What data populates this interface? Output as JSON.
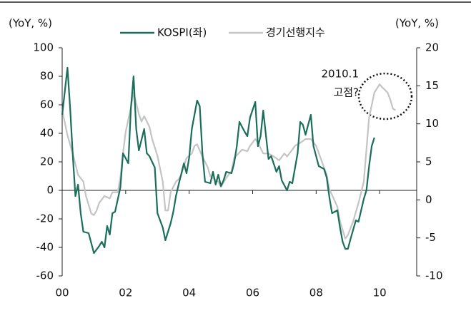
{
  "chart_data": {
    "type": "line",
    "ylabel": "(YoY, %)",
    "y2label": "(YoY, %)",
    "xlim": [
      0,
      134
    ],
    "xticks": [
      {
        "value": 0,
        "label": "00"
      },
      {
        "value": 24,
        "label": "02"
      },
      {
        "value": 48,
        "label": "04"
      },
      {
        "value": 72,
        "label": "06"
      },
      {
        "value": 96,
        "label": "08"
      },
      {
        "value": 120,
        "label": "10"
      }
    ],
    "ylim": [
      -60,
      100
    ],
    "yticks": [
      -60,
      -40,
      -20,
      0,
      20,
      40,
      60,
      80,
      100
    ],
    "y2lim": [
      -10,
      20
    ],
    "y2ticks": [
      -10,
      -5,
      0,
      5,
      10,
      15,
      20
    ],
    "annotation": [
      "2010.1",
      "고점?"
    ],
    "series": [
      {
        "name": "KOSPI(좌)",
        "color": "#1a6e5a",
        "x": [
          0,
          2,
          3,
          4,
          5,
          6,
          7,
          8,
          10,
          11,
          12,
          14,
          15,
          16,
          17,
          18,
          19,
          20,
          22,
          23,
          25,
          26,
          27,
          28,
          29,
          31,
          32,
          33,
          35,
          36,
          38,
          39,
          41,
          42,
          43,
          44,
          46,
          47,
          48,
          49,
          51,
          52,
          53,
          54,
          56,
          57,
          58,
          59,
          60,
          61,
          62,
          64,
          65,
          66,
          67,
          69,
          70,
          71,
          73,
          74,
          75,
          76,
          78,
          79,
          81,
          82,
          83,
          85,
          86,
          87,
          89,
          90,
          91,
          92,
          94,
          95,
          96,
          97,
          99,
          100,
          101,
          102,
          104,
          105,
          106,
          107,
          108,
          109,
          111,
          112,
          114,
          115,
          116,
          117,
          118
        ],
        "values": [
          53,
          86,
          58,
          25,
          -4,
          4,
          -16,
          -29,
          -30,
          -37,
          -44,
          -39,
          -36,
          -40,
          -25,
          -31,
          -16,
          -15,
          2,
          26,
          19,
          58,
          80,
          43,
          28,
          43,
          26,
          24,
          16,
          -16,
          -26,
          -35,
          -23,
          -15,
          -4,
          4,
          19,
          12,
          23,
          43,
          63,
          59,
          26,
          6,
          5,
          13,
          4,
          11,
          3,
          7,
          13,
          12,
          19,
          31,
          48,
          41,
          38,
          51,
          62,
          31,
          38,
          56,
          22,
          24,
          13,
          17,
          7,
          0,
          6,
          5,
          26,
          48,
          46,
          39,
          53,
          31,
          24,
          17,
          15,
          9,
          -5,
          -16,
          -14,
          -26,
          -36,
          -41,
          -41,
          -34,
          -21,
          -22,
          -6,
          0,
          17,
          31,
          37
        ]
      },
      {
        "name": "경기선행지수",
        "color": "#c4c4c4",
        "axis": "y2",
        "x": [
          0,
          2,
          4,
          6,
          8,
          9,
          11,
          12,
          13,
          14,
          16,
          18,
          19,
          21,
          22,
          23,
          24,
          26,
          27,
          28,
          29,
          30,
          31,
          33,
          34,
          36,
          38,
          39,
          40,
          41,
          43,
          44,
          45,
          47,
          49,
          50,
          51,
          53,
          55,
          56,
          59,
          60,
          62,
          64,
          65,
          68,
          70,
          71,
          73,
          74,
          76,
          78,
          80,
          82,
          84,
          85,
          87,
          88,
          90,
          92,
          94,
          96,
          98,
          100,
          101,
          104,
          105,
          107,
          108,
          110,
          112,
          114,
          115,
          116,
          118,
          120,
          121,
          123,
          124,
          125,
          126
        ],
        "values": [
          11.8,
          8.5,
          6.1,
          3.3,
          2.4,
          0.5,
          -1.8,
          -2,
          -1.4,
          -0.4,
          0.5,
          0.2,
          1,
          1,
          2.9,
          6.1,
          8.9,
          12.2,
          14.1,
          12.7,
          11.3,
          10.3,
          11,
          9.6,
          8,
          5.8,
          2.4,
          -1.4,
          -1.4,
          1,
          2.4,
          2.7,
          3.3,
          5.5,
          6.1,
          7.1,
          7.3,
          5.7,
          4.3,
          3.1,
          2.4,
          1.7,
          2.9,
          3.8,
          5.5,
          6.6,
          6.4,
          7.1,
          8,
          7.5,
          6.1,
          6.1,
          5.7,
          5.2,
          6.1,
          5.7,
          6.6,
          7.1,
          7.5,
          8,
          8,
          7.1,
          5.2,
          3.3,
          1.4,
          -0.9,
          -2.8,
          -5.1,
          -4.6,
          -2.8,
          -0.4,
          2.4,
          6.6,
          10.8,
          14.1,
          15.2,
          14.8,
          14.1,
          13.2,
          12,
          11.8
        ]
      }
    ]
  }
}
